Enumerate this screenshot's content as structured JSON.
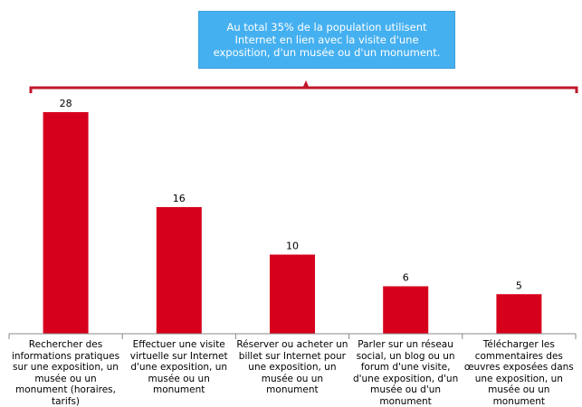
{
  "callout_text": "Au total 35% de la population utilisent Internet en lien avec la visite d'une exposition, d'un musée ou d'un monument.",
  "colors": {
    "bar": "#d6001c",
    "bracket": "#c0172b",
    "callout_bg": "#45b0f0",
    "axis": "#888888"
  },
  "chart_data": {
    "type": "bar",
    "title": "",
    "xlabel": "",
    "ylabel": "",
    "ylim": [
      0,
      28
    ],
    "grid": false,
    "categories": [
      "Rechercher des informations pratiques sur une exposition, un musée ou un monument (horaires, tarifs)",
      "Effectuer une visite virtuelle sur Internet d'une exposition, un musée ou un monument",
      "Réserver ou acheter un billet sur Internet pour une exposition, un musée ou un monument",
      "Parler sur un réseau social, un blog ou un forum d'une visite, d'une exposition, d'un musée ou d'un monument",
      "Télécharger les commentaires des œuvres exposées dans une exposition, un musée ou un monument"
    ],
    "values": [
      28,
      16,
      10,
      6,
      5
    ],
    "data_labels": [
      "28",
      "16",
      "10",
      "6",
      "5"
    ]
  }
}
